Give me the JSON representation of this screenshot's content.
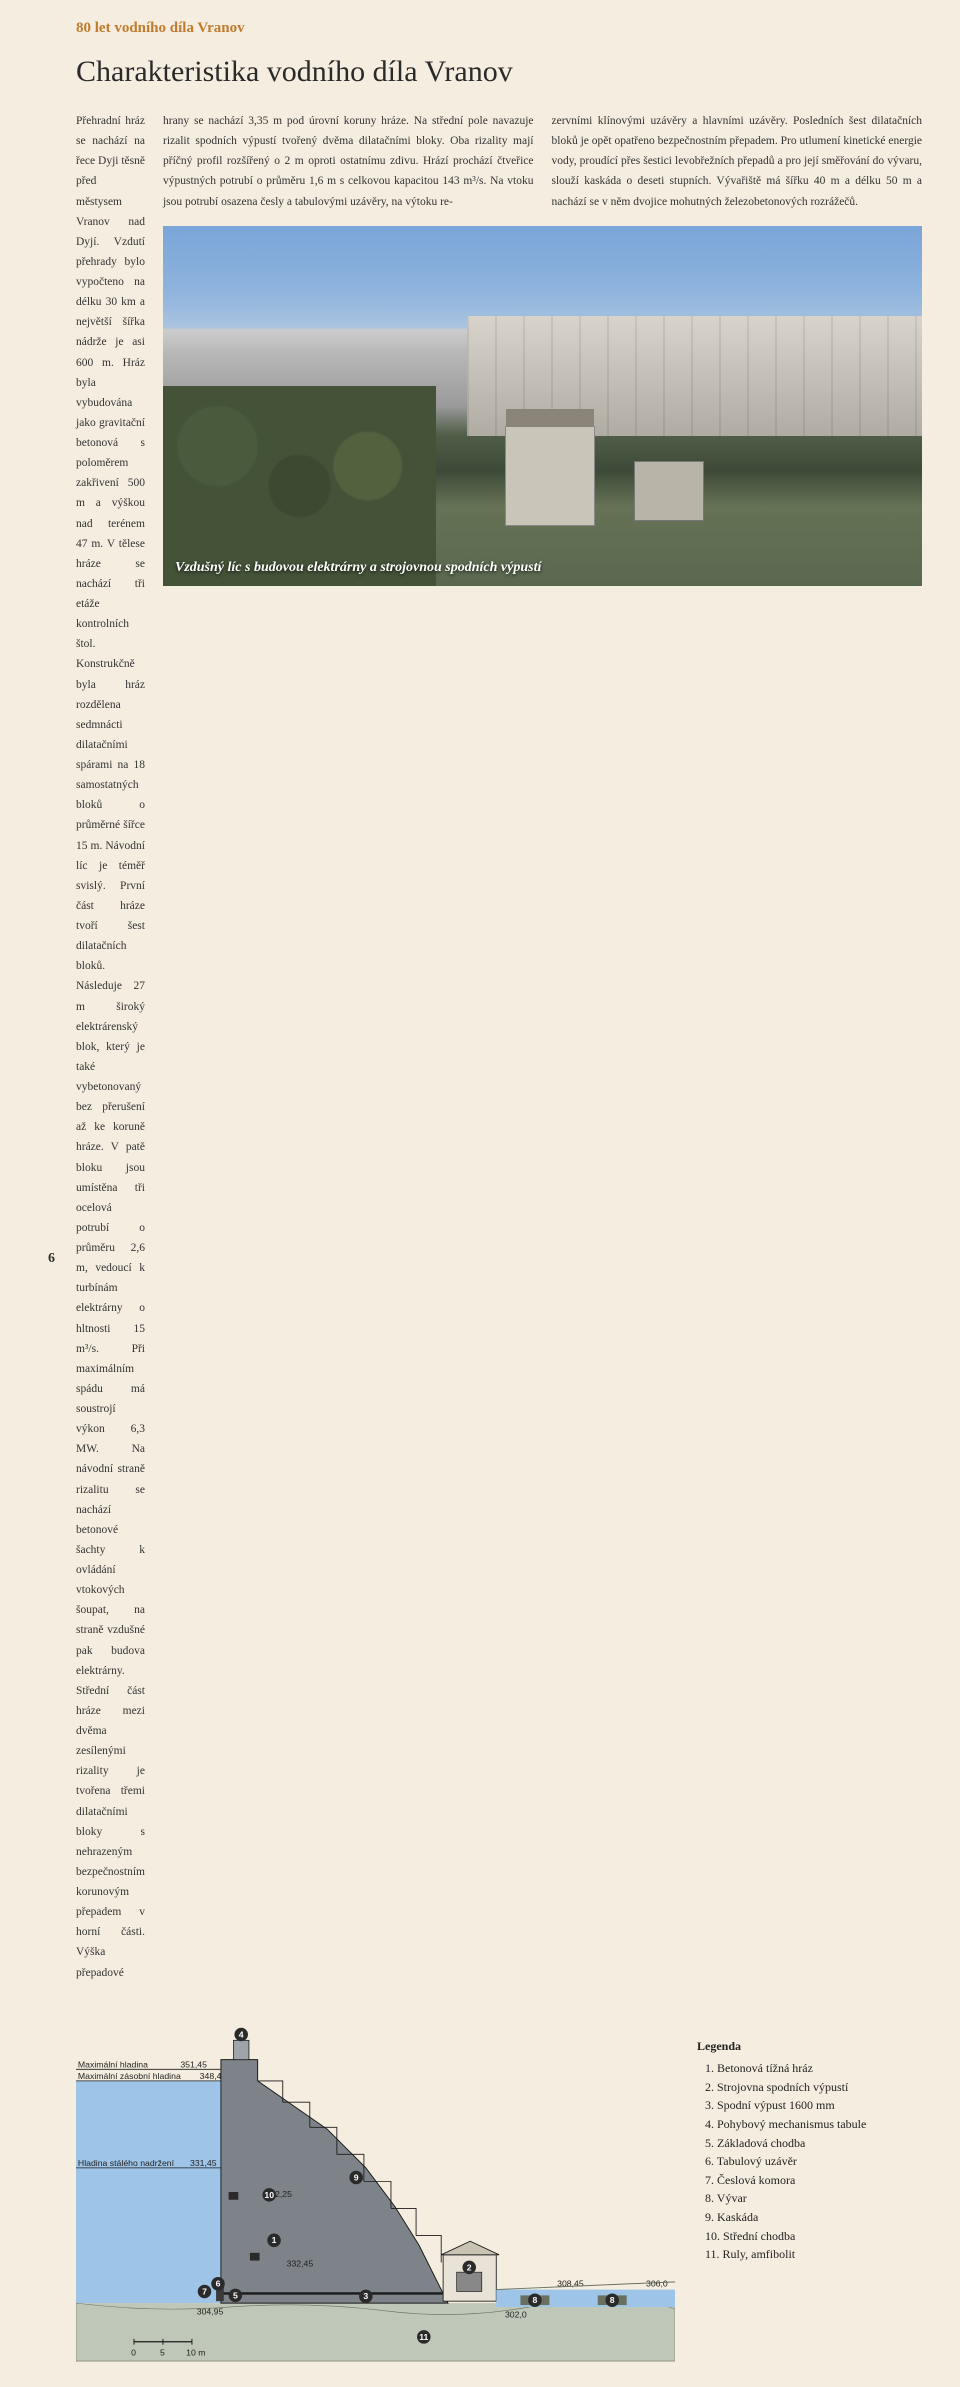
{
  "header": {
    "title": "80 let vodního díla Vranov"
  },
  "article": {
    "title": "Charakteristika vodního díla Vranov",
    "col1": "Přehradní hráz se nachází na řece Dyji těsně před městysem Vranov nad Dyjí. Vzdutí přehrady bylo vypočteno na délku 30 km a největší šířka nádrže je asi 600 m. Hráz byla vybudována jako gravitační betonová s poloměrem zakřivení 500 m a výškou nad terénem 47 m. V tělese hráze se nachází tři etáže kontrolních štol. Konstrukčně byla hráz rozdělena sedmnácti dilatačními spárami na 18 samostatných bloků o průměrné šířce 15 m. Návodní líc je téměř svislý. První část hráze tvoří šest dilatačních bloků. Následuje 27 m široký elektrárenský blok, který je také vybetonovaný bez přerušení až ke koruně hráze. V patě bloku jsou umístěna tři ocelová potrubí o průměru 2,6 m, vedoucí k turbínám elektrárny o hltnosti 15 m³/s. Při maximálním spádu má soustrojí výkon 6,3 MW. Na návodní straně rizalitu se nachází betonové šachty k ovládání vtokových šoupat, na straně vzdušné pak budova elektrárny. Střední část hráze mezi dvěma zesílenými rizality je tvořena třemi dilatačními bloky s nehrazeným bezpečnostním korunovým přepadem v horní části. Výška přepadové",
    "col2": "hrany se nachází 3,35 m pod úrovní koruny hráze. Na střední pole navazuje rizalit spodních výpustí tvořený dvěma dilatačními bloky. Oba rizality mají příčný profil rozšířený o 2 m oproti ostatnímu zdivu. Hrází prochází čtveřice výpustných potrubí o průměru 1,6 m s celkovou kapacitou 143 m³/s. Na vtoku jsou potrubí osazena česly a tabulovými uzávěry, na výtoku re-",
    "col3": "zervními klínovými uzávěry a hlavními uzávěry. Posledních šest dilatačních bloků je opět opatřeno bezpečnostním přepadem. Pro utlumení kinetické energie vody, proudící přes šestici levobřežních přepadů a pro její směřování do vývaru, slouží kaskáda o deseti stupních. Vývařiště má šířku 40 m a délku 50 m a nachází se v něm dvojice mohutných železobetonových rozrážečů."
  },
  "photo": {
    "caption": "Vzdušný líc s budovou elektrárny a strojovnou spodních výpustí"
  },
  "diagram": {
    "levels": {
      "max_label": "Maximální hladina",
      "max_val": "351,45",
      "storage_label": "Maximální zásobní hladina",
      "storage_val": "348,45",
      "retention_label": "Hladina stálého nadržení",
      "retention_val": "331,45",
      "mid_val": "312,25",
      "base1": "304,95",
      "base2": "332,45",
      "out1": "308,45",
      "out2": "306,0",
      "out3": "302,0"
    },
    "scale": {
      "a": "0",
      "b": "5",
      "c": "10 m"
    },
    "markers": [
      "1",
      "2",
      "3",
      "4",
      "5",
      "6",
      "7",
      "8",
      "9",
      "10",
      "11"
    ],
    "colors": {
      "water": "#9ec5e8",
      "concrete": "#7d8389",
      "ground": "#d6c79a",
      "bedrock": "#bfc7b8",
      "line": "#1a1a1a"
    }
  },
  "legend": {
    "title": "Legenda",
    "items": [
      "1. Betonová tížná hráz",
      "2. Strojovna spodních výpustí",
      "3. Spodní výpust 1600 mm",
      "4. Pohybový mechanismus tabule",
      "5. Základová chodba",
      "6. Tabulový uzávěr",
      "7. Česlová komora",
      "8. Vývar",
      "9. Kaskáda",
      "10. Střední chodba",
      "11. Ruly, amfibolit"
    ]
  },
  "page_number": "6"
}
